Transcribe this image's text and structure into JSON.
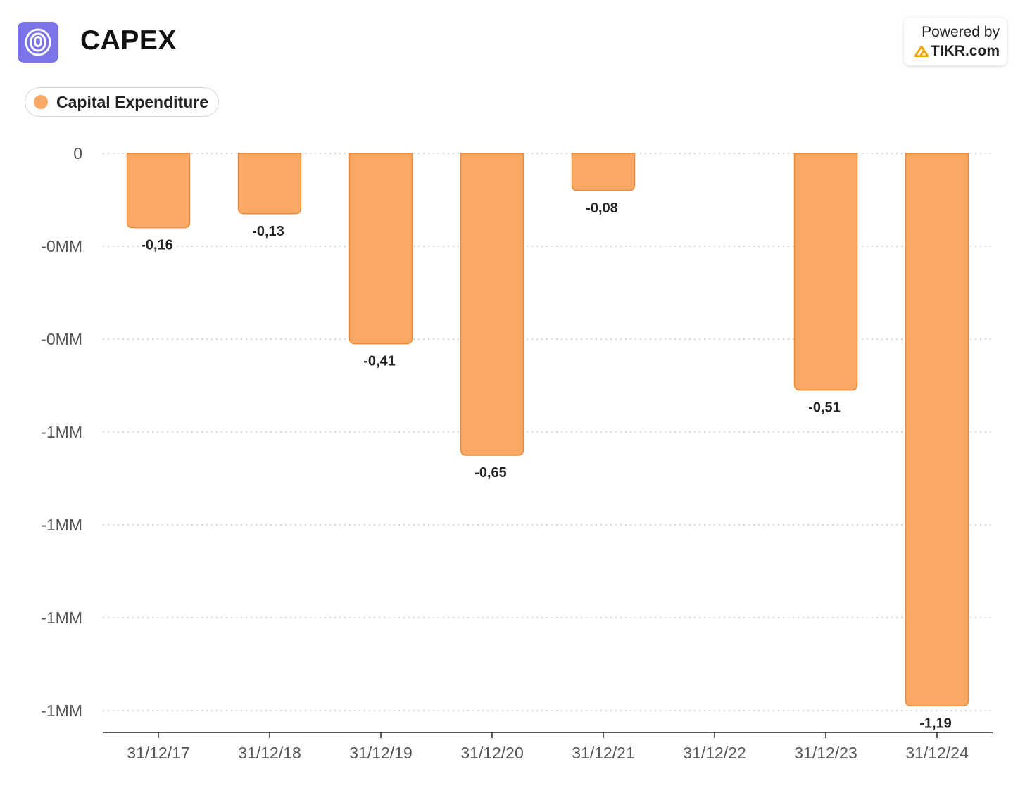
{
  "header": {
    "title": "CAPEX",
    "logo_icon": "company-logo-icon",
    "powered_by": "Powered by",
    "brand": "TIKR.com",
    "brand_icon": "tikr-logo-icon"
  },
  "colors": {
    "bar_fill": "#f9a865",
    "bar_stroke": "#ee8a35",
    "logo_bg": "#7b73e8",
    "brand_accent": "#f0a500"
  },
  "chart_data": {
    "type": "bar",
    "title": "CAPEX",
    "xlabel": "",
    "ylabel": "",
    "legend": "top-left",
    "grid": true,
    "series": [
      {
        "name": "Capital Expenditure",
        "values": [
          -0.16,
          -0.13,
          -0.41,
          -0.65,
          -0.08,
          null,
          -0.51,
          -1.19
        ],
        "labels": [
          "-0,16",
          "-0,13",
          "-0,41",
          "-0,65",
          "-0,08",
          "",
          "-0,51",
          "-1,19"
        ]
      }
    ],
    "categories": [
      "31/12/17",
      "31/12/18",
      "31/12/19",
      "31/12/20",
      "31/12/21",
      "31/12/22",
      "31/12/23",
      "31/12/24"
    ],
    "y_ticks": [
      {
        "value": 0,
        "label": "0"
      },
      {
        "value": -0.2,
        "label": "-0MM"
      },
      {
        "value": -0.4,
        "label": "-0MM"
      },
      {
        "value": -0.6,
        "label": "-1MM"
      },
      {
        "value": -0.8,
        "label": "-1MM"
      },
      {
        "value": -1.0,
        "label": "-1MM"
      },
      {
        "value": -1.2,
        "label": "-1MM"
      }
    ],
    "ylim": [
      -1.25,
      0
    ]
  }
}
